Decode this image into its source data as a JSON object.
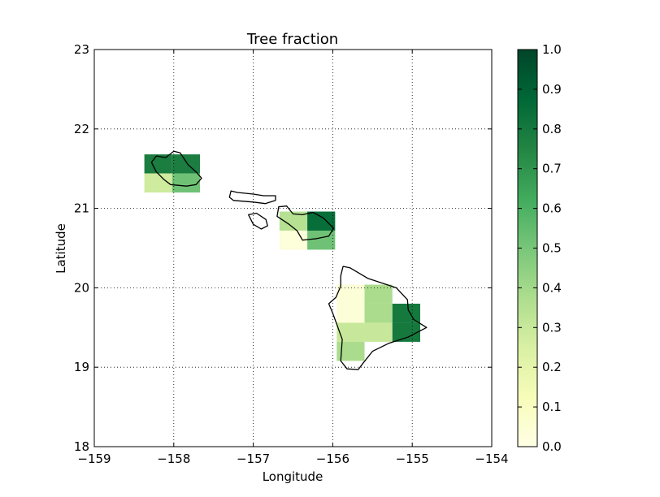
{
  "chart_data": {
    "type": "heatmap",
    "title": "Tree fraction",
    "xlabel": "Longitude",
    "ylabel": "Latitude",
    "xlim": [
      -159,
      -154
    ],
    "ylim": [
      18,
      23
    ],
    "x_ticks": [
      -159,
      -158,
      -157,
      -156,
      -155,
      -154
    ],
    "x_tick_labels": [
      "−159",
      "−158",
      "−157",
      "−156",
      "−155",
      "−154"
    ],
    "y_ticks": [
      18,
      19,
      20,
      21,
      22,
      23
    ],
    "y_tick_labels": [
      "18",
      "19",
      "20",
      "21",
      "22",
      "23"
    ],
    "grid": true,
    "grid_style": "dotted",
    "colormap": "YlGn",
    "colorbar": {
      "range": [
        0,
        1
      ],
      "ticks": [
        0,
        0.1,
        0.2,
        0.3,
        0.4,
        0.5,
        0.6,
        0.7,
        0.8,
        0.9,
        1.0
      ],
      "tick_labels": [
        "0.0",
        "0.1",
        "0.2",
        "0.3",
        "0.4",
        "0.5",
        "0.6",
        "0.7",
        "0.8",
        "0.9",
        "1.0"
      ],
      "placement": "right"
    },
    "cell_size_deg": [
      0.35,
      0.24
    ],
    "cells": [
      {
        "lon": -158.37,
        "lat": 21.68,
        "value": 0.78
      },
      {
        "lon": -158.02,
        "lat": 21.68,
        "value": 0.78
      },
      {
        "lon": -158.37,
        "lat": 21.44,
        "value": 0.28
      },
      {
        "lon": -158.02,
        "lat": 21.44,
        "value": 0.52
      },
      {
        "lon": -156.67,
        "lat": 20.96,
        "value": 0.35
      },
      {
        "lon": -156.32,
        "lat": 20.96,
        "value": 0.85
      },
      {
        "lon": -156.67,
        "lat": 20.72,
        "value": 0.03
      },
      {
        "lon": -156.32,
        "lat": 20.72,
        "value": 0.52
      },
      {
        "lon": -155.95,
        "lat": 20.04,
        "value": 0.04
      },
      {
        "lon": -155.6,
        "lat": 20.04,
        "value": 0.38
      },
      {
        "lon": -155.95,
        "lat": 19.8,
        "value": 0.04
      },
      {
        "lon": -155.6,
        "lat": 19.8,
        "value": 0.38
      },
      {
        "lon": -155.25,
        "lat": 19.8,
        "value": 0.8
      },
      {
        "lon": -155.95,
        "lat": 19.56,
        "value": 0.3
      },
      {
        "lon": -155.6,
        "lat": 19.56,
        "value": 0.3
      },
      {
        "lon": -155.25,
        "lat": 19.56,
        "value": 0.8
      },
      {
        "lon": -155.95,
        "lat": 19.32,
        "value": 0.38
      }
    ],
    "coastlines": [
      {
        "name": "oahu",
        "points": [
          [
            -158.28,
            21.58
          ],
          [
            -158.22,
            21.66
          ],
          [
            -158.1,
            21.64
          ],
          [
            -158.0,
            21.72
          ],
          [
            -157.92,
            21.7
          ],
          [
            -157.82,
            21.55
          ],
          [
            -157.72,
            21.46
          ],
          [
            -157.65,
            21.38
          ],
          [
            -157.72,
            21.3
          ],
          [
            -157.84,
            21.28
          ],
          [
            -158.04,
            21.3
          ],
          [
            -158.12,
            21.36
          ],
          [
            -158.22,
            21.46
          ],
          [
            -158.28,
            21.58
          ]
        ]
      },
      {
        "name": "molokai",
        "points": [
          [
            -157.28,
            21.22
          ],
          [
            -157.2,
            21.2
          ],
          [
            -157.0,
            21.18
          ],
          [
            -156.87,
            21.16
          ],
          [
            -156.72,
            21.16
          ],
          [
            -156.72,
            21.1
          ],
          [
            -156.85,
            21.06
          ],
          [
            -157.0,
            21.08
          ],
          [
            -157.25,
            21.1
          ],
          [
            -157.3,
            21.14
          ],
          [
            -157.28,
            21.22
          ]
        ]
      },
      {
        "name": "lanai",
        "points": [
          [
            -157.06,
            20.92
          ],
          [
            -156.96,
            20.94
          ],
          [
            -156.84,
            20.86
          ],
          [
            -156.82,
            20.78
          ],
          [
            -156.9,
            20.74
          ],
          [
            -157.0,
            20.8
          ],
          [
            -157.06,
            20.92
          ]
        ]
      },
      {
        "name": "maui",
        "points": [
          [
            -156.68,
            21.02
          ],
          [
            -156.58,
            21.03
          ],
          [
            -156.5,
            20.93
          ],
          [
            -156.38,
            20.92
          ],
          [
            -156.25,
            20.95
          ],
          [
            -156.12,
            20.88
          ],
          [
            -155.99,
            20.75
          ],
          [
            -156.05,
            20.65
          ],
          [
            -156.2,
            20.62
          ],
          [
            -156.38,
            20.6
          ],
          [
            -156.45,
            20.72
          ],
          [
            -156.55,
            20.8
          ],
          [
            -156.7,
            20.9
          ],
          [
            -156.68,
            21.02
          ]
        ]
      },
      {
        "name": "hawaii",
        "points": [
          [
            -155.87,
            20.27
          ],
          [
            -155.78,
            20.25
          ],
          [
            -155.56,
            20.12
          ],
          [
            -155.2,
            20.0
          ],
          [
            -155.06,
            19.85
          ],
          [
            -155.05,
            19.72
          ],
          [
            -154.98,
            19.6
          ],
          [
            -154.82,
            19.5
          ],
          [
            -155.05,
            19.38
          ],
          [
            -155.3,
            19.3
          ],
          [
            -155.5,
            19.2
          ],
          [
            -155.62,
            19.05
          ],
          [
            -155.68,
            18.97
          ],
          [
            -155.82,
            18.98
          ],
          [
            -155.9,
            19.08
          ],
          [
            -155.88,
            19.35
          ],
          [
            -156.0,
            19.68
          ],
          [
            -156.05,
            19.8
          ],
          [
            -155.96,
            19.88
          ],
          [
            -155.9,
            20.02
          ],
          [
            -155.9,
            20.15
          ],
          [
            -155.87,
            20.27
          ]
        ]
      }
    ]
  }
}
